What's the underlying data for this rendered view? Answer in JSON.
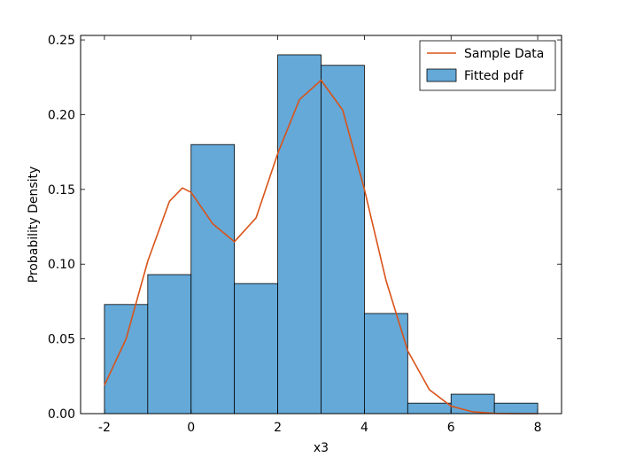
{
  "chart_data": {
    "type": "bar",
    "xlabel": "x3",
    "ylabel": "Probability Density",
    "xlim": [
      -2.55,
      8.55
    ],
    "ylim": [
      0,
      0.253
    ],
    "xticks": [
      -2,
      0,
      2,
      4,
      6,
      8
    ],
    "yticks": [
      0.0,
      0.05,
      0.1,
      0.15,
      0.2,
      0.25
    ],
    "ytick_labels": [
      "0.00",
      "0.05",
      "0.10",
      "0.15",
      "0.20",
      "0.25"
    ],
    "grid": false,
    "legend_position": "top-right",
    "bar_color": "#64a9d8",
    "line_color": "#d95319",
    "bins": [
      {
        "x0": -2,
        "x1": -1,
        "value": 0.073
      },
      {
        "x0": -1,
        "x1": 0,
        "value": 0.093
      },
      {
        "x0": 0,
        "x1": 1,
        "value": 0.18
      },
      {
        "x0": 1,
        "x1": 2,
        "value": 0.087
      },
      {
        "x0": 2,
        "x1": 3,
        "value": 0.24
      },
      {
        "x0": 3,
        "x1": 4,
        "value": 0.233
      },
      {
        "x0": 4,
        "x1": 5,
        "value": 0.067
      },
      {
        "x0": 5,
        "x1": 6,
        "value": 0.007
      },
      {
        "x0": 6,
        "x1": 7,
        "value": 0.013
      },
      {
        "x0": 7,
        "x1": 8,
        "value": 0.007
      }
    ],
    "series": [
      {
        "name": "Sample Data",
        "type": "line",
        "x": [
          -2,
          -1.5,
          -1,
          -0.5,
          -0.2,
          0,
          0.5,
          1,
          1.5,
          2,
          2.5,
          3,
          3.5,
          4,
          4.5,
          5,
          5.5,
          6,
          6.5,
          7,
          7.5,
          8
        ],
        "y": [
          0.019,
          0.05,
          0.102,
          0.142,
          0.151,
          0.148,
          0.127,
          0.115,
          0.131,
          0.174,
          0.21,
          0.223,
          0.203,
          0.15,
          0.089,
          0.042,
          0.016,
          0.005,
          0.0012,
          0.0002,
          0.0,
          0.0
        ]
      }
    ],
    "legend": [
      {
        "label": "Sample Data",
        "kind": "line"
      },
      {
        "label": "Fitted pdf",
        "kind": "patch"
      }
    ]
  }
}
